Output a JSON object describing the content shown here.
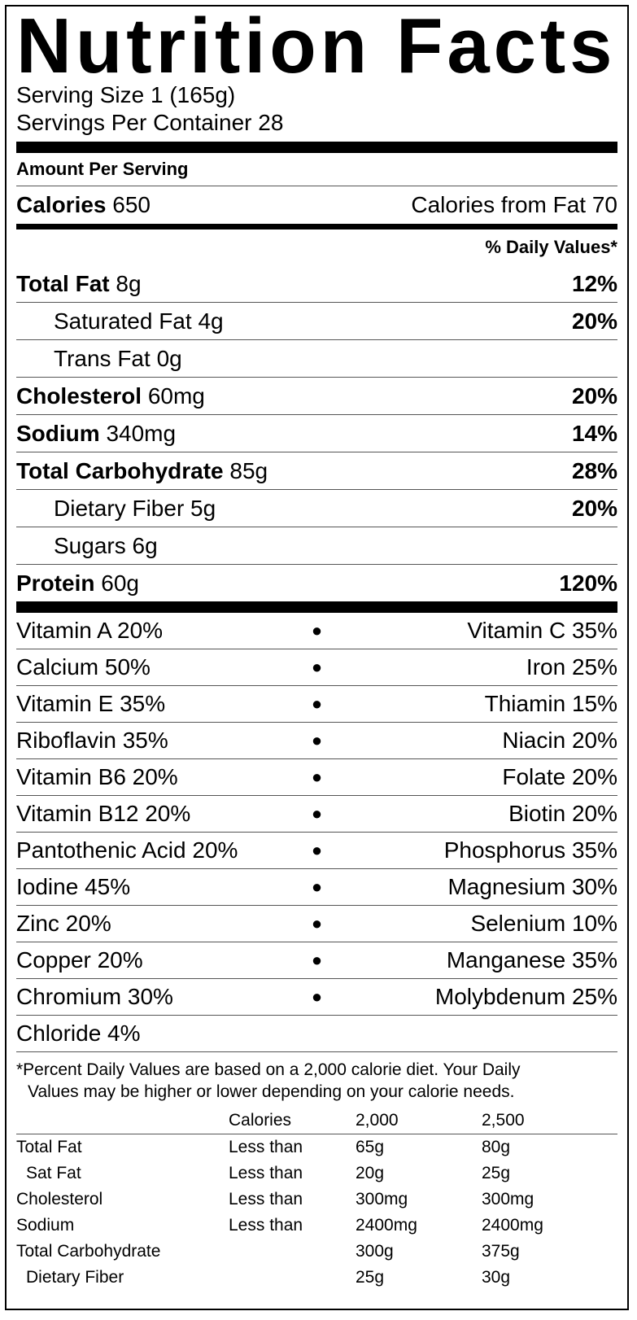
{
  "title": "Nutrition Facts",
  "serving_size": "Serving Size 1  (165g)",
  "servings_per_container": "Servings Per Container 28",
  "amount_per_serving": "Amount Per Serving",
  "calories": {
    "label": "Calories",
    "value": "650",
    "from_fat": "Calories from Fat 70"
  },
  "daily_values_header": "% Daily Values*",
  "nutrients": [
    {
      "name": "Total Fat",
      "amount": "8g",
      "dv": "12%"
    },
    {
      "name": "Saturated Fat",
      "amount": "4g",
      "dv": "20%"
    },
    {
      "name": "Trans Fat",
      "amount": "0g",
      "dv": ""
    },
    {
      "name": "Cholesterol",
      "amount": "60mg",
      "dv": "20%"
    },
    {
      "name": "Sodium",
      "amount": "340mg",
      "dv": "14%"
    },
    {
      "name": "Total Carbohydrate",
      "amount": "85g",
      "dv": "28%"
    },
    {
      "name": "Dietary Fiber",
      "amount": "5g",
      "dv": "20%"
    },
    {
      "name": "Sugars",
      "amount": "6g",
      "dv": ""
    },
    {
      "name": "Protein",
      "amount": "60g",
      "dv": "120%"
    }
  ],
  "vitamins": [
    {
      "left": "Vitamin A 20%",
      "right": "Vitamin C 35%"
    },
    {
      "left": "Calcium 50%",
      "right": "Iron 25%"
    },
    {
      "left": "Vitamin E 35%",
      "right": "Thiamin 15%"
    },
    {
      "left": "Riboflavin 35%",
      "right": "Niacin 20%"
    },
    {
      "left": "Vitamin B6 20%",
      "right": "Folate 20%"
    },
    {
      "left": "Vitamin B12 20%",
      "right": "Biotin 20%"
    },
    {
      "left": "Pantothenic Acid 20%",
      "right": "Phosphorus 35%"
    },
    {
      "left": "Iodine 45%",
      "right": "Magnesium 30%"
    },
    {
      "left": "Zinc 20%",
      "right": "Selenium 10%"
    },
    {
      "left": "Copper 20%",
      "right": "Manganese 35%"
    },
    {
      "left": "Chromium 30%",
      "right": "Molybdenum 25%"
    },
    {
      "left": "Chloride 4%",
      "right": ""
    }
  ],
  "bullet": "●",
  "footnote": {
    "line1": "*Percent Daily Values are based on a 2,000 calorie diet. Your Daily",
    "line2": "Values may be higher or lower depending on your calorie needs."
  },
  "dv_table": {
    "header": {
      "label": "",
      "calories": "Calories",
      "c2000": "2,000",
      "c2500": "2,500"
    },
    "rows": [
      {
        "name": "Total Fat",
        "limit": "Less than",
        "c2000": "65g",
        "c2500": "80g"
      },
      {
        "name": "Sat Fat",
        "limit": "Less than",
        "c2000": "20g",
        "c2500": "25g"
      },
      {
        "name": "Cholesterol",
        "limit": "Less than",
        "c2000": "300mg",
        "c2500": "300mg"
      },
      {
        "name": "Sodium",
        "limit": "Less than",
        "c2000": "2400mg",
        "c2500": "2400mg"
      },
      {
        "name": "Total Carbohydrate",
        "limit": "",
        "c2000": "300g",
        "c2500": "375g"
      },
      {
        "name": "Dietary Fiber",
        "limit": "",
        "c2000": "25g",
        "c2500": "30g"
      }
    ]
  }
}
